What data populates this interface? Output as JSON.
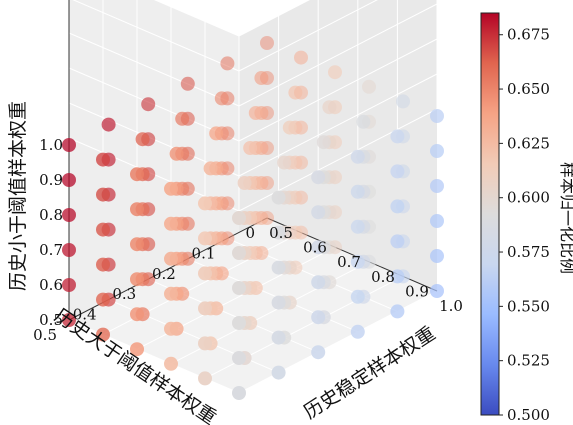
{
  "chart_data": {
    "type": "scatter",
    "subtype": "scatter-3d",
    "title": "",
    "xlabel": "历史大于阈值样本权重",
    "ylabel": "历史稳定样本权重",
    "zlabel": "历史小于阈值样本权重",
    "x_ticks": [
      "0",
      "0.1",
      "0.2",
      "0.3",
      "0.4",
      "0.5"
    ],
    "y_ticks": [
      "0.5",
      "0.6",
      "0.7",
      "0.8",
      "0.9",
      "1.0"
    ],
    "z_ticks": [
      "0.5",
      "0.6",
      "0.7",
      "0.8",
      "0.9",
      "1.0"
    ],
    "xlim": [
      0,
      0.5
    ],
    "ylim": [
      0.5,
      1.0
    ],
    "zlim": [
      0.5,
      1.0
    ],
    "x_values": [
      0,
      0.1,
      0.2,
      0.3,
      0.4,
      0.5
    ],
    "y_values": [
      0.5,
      0.6,
      0.7,
      0.8,
      0.9,
      1.0
    ],
    "z_values": [
      0.5,
      0.6,
      0.7,
      0.8,
      0.9,
      1.0
    ],
    "color_rule": "value ≈ 0.588 + 0.09·x_norm − 0.035·y_norm + 0.01·z_norm (normalized 0–1 along each axis)",
    "point_samples": [
      {
        "x": 0.5,
        "y": 0.5,
        "z": 0.5,
        "value": 0.672
      },
      {
        "x": 0.0,
        "y": 1.0,
        "z": 0.8,
        "value": 0.52
      },
      {
        "x": 0.5,
        "y": 1.0,
        "z": 1.0,
        "value": 0.64
      },
      {
        "x": 0.0,
        "y": 0.5,
        "z": 0.5,
        "value": 0.6
      }
    ],
    "colorbar": {
      "label": "样本归一化比例",
      "min": 0.5,
      "max": 0.685,
      "ticks": [
        "0.500",
        "0.525",
        "0.550",
        "0.575",
        "0.600",
        "0.625",
        "0.650",
        "0.675"
      ],
      "tick_values": [
        0.5,
        0.525,
        0.55,
        0.575,
        0.6,
        0.625,
        0.65,
        0.675
      ],
      "colormap": "coolwarm",
      "stops": [
        "#3b4cc0",
        "#6889ee",
        "#9abbff",
        "#c9d7f0",
        "#dddcdc",
        "#f2cbb7",
        "#f6a385",
        "#e0654f",
        "#b40426"
      ]
    }
  }
}
